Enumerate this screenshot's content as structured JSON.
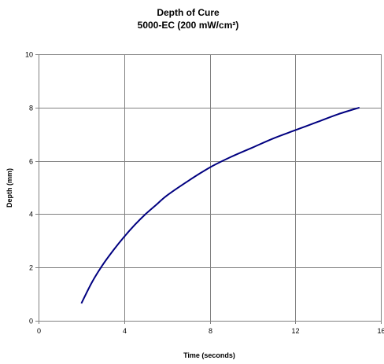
{
  "chart_data": {
    "type": "line",
    "title": "Depth of Cure",
    "subtitle": "5000-EC (200 mW/cm²)",
    "xlabel": "Time (seconds)",
    "ylabel": "Depth (mm)",
    "xlim": [
      0,
      16
    ],
    "ylim": [
      0,
      10
    ],
    "x_ticks": [
      0,
      4,
      8,
      12,
      16
    ],
    "y_ticks": [
      0,
      2,
      4,
      6,
      8,
      10
    ],
    "grid": true,
    "legend": "none",
    "series": [
      {
        "color": "#000080",
        "x": [
          2,
          2.5,
          3,
          3.5,
          4,
          4.5,
          5,
          5.5,
          6,
          7,
          8,
          9,
          10,
          11,
          12,
          13,
          14,
          15
        ],
        "y": [
          0.65,
          1.45,
          2.1,
          2.65,
          3.15,
          3.6,
          4.0,
          4.35,
          4.7,
          5.25,
          5.75,
          6.15,
          6.5,
          6.85,
          7.15,
          7.45,
          7.75,
          8.0
        ]
      }
    ]
  }
}
